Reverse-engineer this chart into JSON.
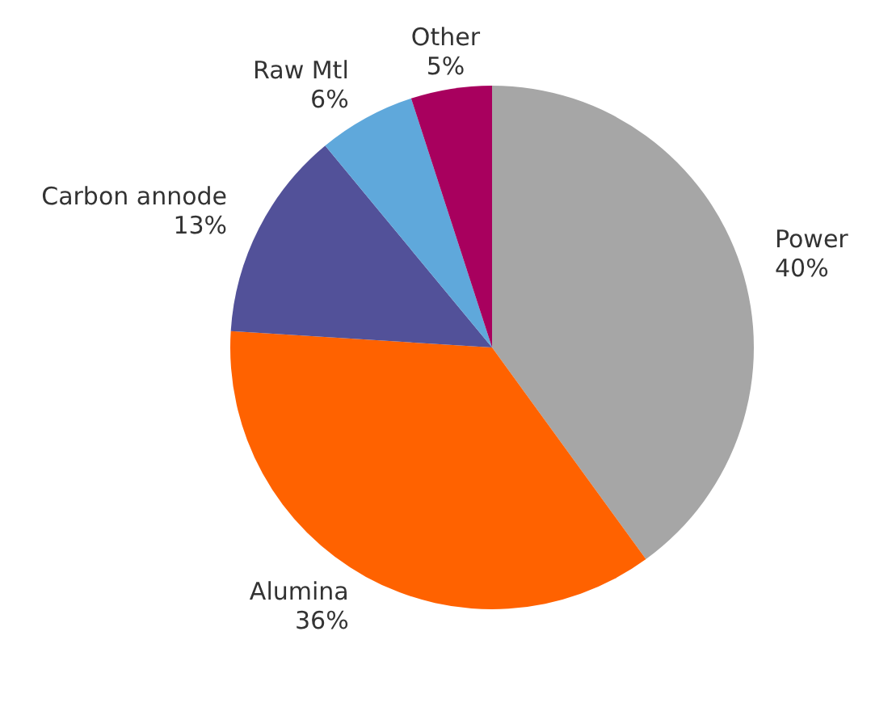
{
  "chart_data": {
    "type": "pie",
    "categories": [
      "Power",
      "Alumina",
      "Carbon annode",
      "Raw Mtl",
      "Other"
    ],
    "values": [
      40,
      36,
      13,
      6,
      5
    ],
    "value_labels": [
      "40%",
      "36%",
      "13%",
      "6%",
      "5%"
    ],
    "colors": [
      "#a6a6a6",
      "#ff6200",
      "#525199",
      "#5fa8db",
      "#a8005e"
    ]
  }
}
